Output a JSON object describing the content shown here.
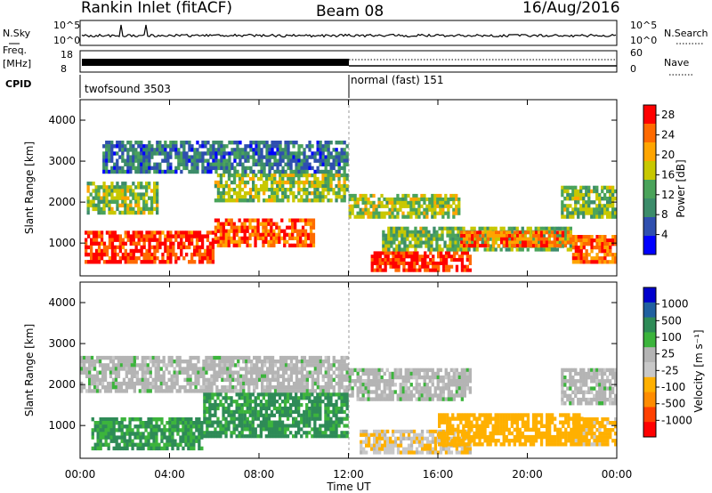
{
  "header": {
    "station": "Rankin Inlet (fitACF)",
    "beam": "Beam 08",
    "date": "16/Aug/2016"
  },
  "panels": {
    "nsky_label": "N.Sky",
    "nsky_tick_top": "10^5",
    "nsky_tick_bottom": "10^0",
    "nsearch_label": "N.Search",
    "nsearch_tick_top": "10^5",
    "nsearch_tick_bottom": "10^0",
    "freq_label_1": "Freq.",
    "freq_label_2": "[MHz]",
    "freq_tick_top": "18",
    "freq_tick_bottom": "8",
    "nave_label": "Nave",
    "nave_tick_top": "60",
    "nave_tick_bottom": "0",
    "cpid_label": "CPID",
    "cpid_mode_1": "twofsound 3503",
    "cpid_mode_2": "normal (fast) 151"
  },
  "colors": {
    "power_scale": [
      "#0000ff",
      "#2f4faf",
      "#3c8c6a",
      "#4aa35a",
      "#c8c800",
      "#ffa500",
      "#ff6a00",
      "#ff0000"
    ],
    "velocity_scale": [
      "#ff0000",
      "#ff4000",
      "#ff8c00",
      "#ffb000",
      "#c8c8c8",
      "#b4b4b4",
      "#3cb43c",
      "#2e8b57",
      "#2060a0",
      "#0000cd"
    ]
  },
  "chart_data": [
    {
      "type": "heatmap",
      "quantity": "power",
      "ylabel": "Slant Range [km]",
      "xlabel": "Time UT",
      "xticks": [
        "00:00",
        "04:00",
        "08:00",
        "12:00",
        "16:00",
        "20:00",
        "00:00"
      ],
      "yticks": [
        1000,
        2000,
        3000,
        4000
      ],
      "ylim": [
        200,
        4500
      ],
      "xlim": [
        0,
        24
      ],
      "colorbar": {
        "label": "Power [dB]",
        "ticks": [
          4,
          8,
          12,
          16,
          20,
          24,
          28
        ],
        "range": [
          0,
          30
        ]
      },
      "regions": [
        {
          "t": [
            0.2,
            6.0
          ],
          "r": [
            500,
            1300
          ],
          "value": 27
        },
        {
          "t": [
            6.0,
            10.5
          ],
          "r": [
            900,
            1600
          ],
          "value": 25
        },
        {
          "t": [
            0.3,
            3.5
          ],
          "r": [
            1700,
            2500
          ],
          "value": 15
        },
        {
          "t": [
            6.0,
            12.0
          ],
          "r": [
            2000,
            2700
          ],
          "value": 15
        },
        {
          "t": [
            1.0,
            12.0
          ],
          "r": [
            2700,
            3500
          ],
          "value": 8
        },
        {
          "t": [
            12.0,
            17.0
          ],
          "r": [
            1600,
            2200
          ],
          "value": 16
        },
        {
          "t": [
            13.0,
            17.5
          ],
          "r": [
            300,
            800
          ],
          "value": 28
        },
        {
          "t": [
            13.5,
            22.0
          ],
          "r": [
            800,
            1400
          ],
          "value": 14
        },
        {
          "t": [
            17.0,
            22.0
          ],
          "r": [
            900,
            1300
          ],
          "value": 24
        },
        {
          "t": [
            21.5,
            24.0
          ],
          "r": [
            1600,
            2400
          ],
          "value": 14
        },
        {
          "t": [
            22.0,
            24.0
          ],
          "r": [
            500,
            1200
          ],
          "value": 24
        }
      ]
    },
    {
      "type": "heatmap",
      "quantity": "velocity",
      "ylabel": "Slant Range [km]",
      "xlabel": "Time UT",
      "xticks": [
        "00:00",
        "04:00",
        "08:00",
        "12:00",
        "16:00",
        "20:00",
        "00:00"
      ],
      "yticks": [
        1000,
        2000,
        3000,
        4000
      ],
      "ylim": [
        200,
        4500
      ],
      "xlim": [
        0,
        24
      ],
      "colorbar": {
        "label": "Velocity [m s^-1]",
        "ticks": [
          1000,
          500,
          100,
          25,
          -25,
          -100,
          -500,
          -1000
        ]
      },
      "regions": [
        {
          "t": [
            0.0,
            12.0
          ],
          "r": [
            1800,
            2700
          ],
          "value": 0
        },
        {
          "t": [
            5.5,
            12.0
          ],
          "r": [
            700,
            1800
          ],
          "value": 150
        },
        {
          "t": [
            0.5,
            5.5
          ],
          "r": [
            400,
            1200
          ],
          "value": 120
        },
        {
          "t": [
            12.0,
            17.5
          ],
          "r": [
            1600,
            2400
          ],
          "value": 0
        },
        {
          "t": [
            12.5,
            17.5
          ],
          "r": [
            300,
            900
          ],
          "value": -80
        },
        {
          "t": [
            16.0,
            22.5
          ],
          "r": [
            500,
            1300
          ],
          "value": -300
        },
        {
          "t": [
            21.5,
            24.0
          ],
          "r": [
            1500,
            2400
          ],
          "value": 0
        },
        {
          "t": [
            22.0,
            24.0
          ],
          "r": [
            500,
            1200
          ],
          "value": -200
        }
      ]
    }
  ],
  "axis": {
    "time_label": "Time UT",
    "range_label": "Slant Range [km]",
    "power_label": "Power [dB]",
    "velocity_label": "Velocity [m s⁻¹]"
  }
}
